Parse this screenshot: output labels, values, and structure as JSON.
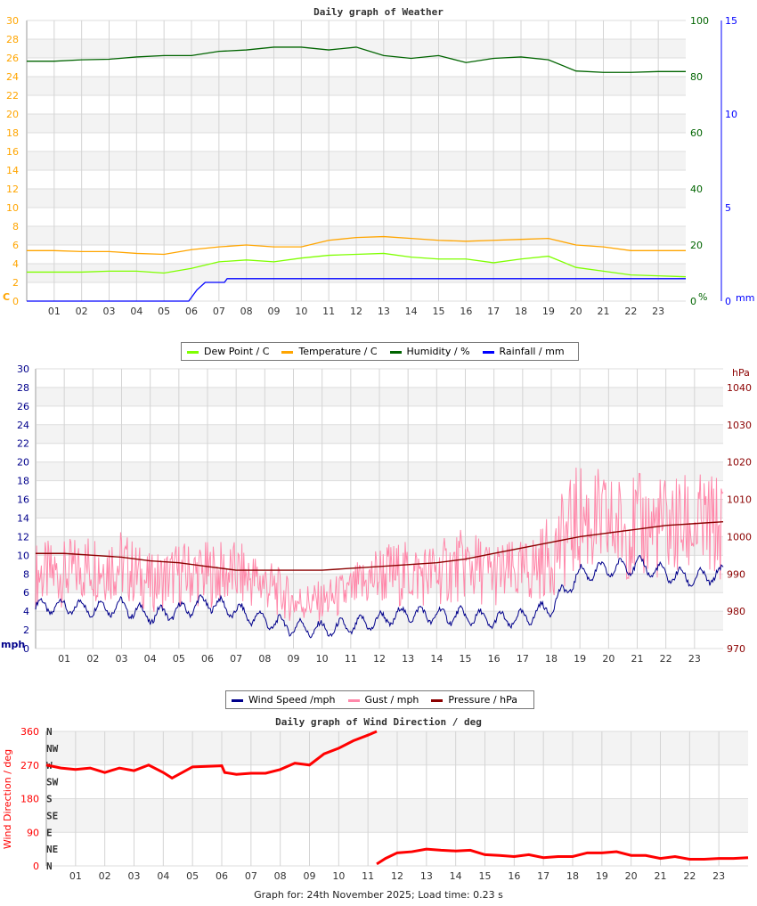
{
  "chart_data": [
    {
      "type": "line",
      "title": "Daily graph of Weather",
      "x_ticks": [
        "01",
        "02",
        "03",
        "04",
        "05",
        "06",
        "07",
        "08",
        "09",
        "10",
        "11",
        "12",
        "13",
        "14",
        "15",
        "16",
        "17",
        "18",
        "19",
        "20",
        "21",
        "22",
        "23"
      ],
      "y_left": {
        "label": "C",
        "ylim": [
          0,
          30
        ],
        "ticks": [
          0,
          2,
          4,
          6,
          8,
          10,
          12,
          14,
          16,
          18,
          20,
          22,
          24,
          26,
          28,
          30
        ],
        "color": "#ffa500"
      },
      "y_right1": {
        "label": "%",
        "ylim": [
          0,
          100
        ],
        "ticks": [
          0,
          20,
          40,
          60,
          80,
          100
        ],
        "color": "#006400"
      },
      "y_right2": {
        "label": "mm",
        "ylim": [
          0,
          15
        ],
        "ticks": [
          0,
          5,
          10,
          15
        ],
        "color": "#0000ff"
      },
      "grid": true,
      "legend": "bottom",
      "series": [
        {
          "name": "Dew Point / C",
          "color": "#7fff00",
          "axis": "left",
          "x": [
            0,
            1,
            2,
            3,
            4,
            5,
            6,
            7,
            8,
            9,
            10,
            11,
            12,
            13,
            14,
            15,
            16,
            17,
            18,
            19,
            20,
            21,
            22,
            23,
            24
          ],
          "values": [
            3.1,
            3.1,
            3.1,
            3.2,
            3.2,
            3.0,
            3.5,
            4.2,
            4.4,
            4.2,
            4.6,
            4.9,
            5.0,
            5.1,
            4.7,
            4.5,
            4.5,
            4.1,
            4.5,
            4.8,
            3.6,
            3.2,
            2.8,
            2.7,
            2.6
          ]
        },
        {
          "name": "Temperature / C",
          "color": "#ffa500",
          "axis": "left",
          "x": [
            0,
            1,
            2,
            3,
            4,
            5,
            6,
            7,
            8,
            9,
            10,
            11,
            12,
            13,
            14,
            15,
            16,
            17,
            18,
            19,
            20,
            21,
            22,
            23,
            24
          ],
          "values": [
            5.4,
            5.4,
            5.3,
            5.3,
            5.1,
            5.0,
            5.5,
            5.8,
            6.0,
            5.8,
            5.8,
            6.5,
            6.8,
            6.9,
            6.7,
            6.5,
            6.4,
            6.5,
            6.6,
            6.7,
            6.0,
            5.8,
            5.4,
            5.4,
            5.4
          ]
        },
        {
          "name": "Humidity / %",
          "color": "#006400",
          "axis": "right1",
          "x": [
            0,
            1,
            2,
            3,
            4,
            5,
            6,
            7,
            8,
            9,
            10,
            11,
            12,
            13,
            14,
            15,
            16,
            17,
            18,
            19,
            20,
            21,
            22,
            23,
            24
          ],
          "values": [
            85.5,
            85.5,
            86,
            86.2,
            87,
            87.5,
            87.5,
            89,
            89.5,
            90.5,
            90.5,
            89.5,
            90.5,
            87.5,
            86.5,
            87.5,
            85,
            86.5,
            87,
            86,
            82,
            81.5,
            81.5,
            81.8,
            81.8
          ]
        },
        {
          "name": "Rainfall / mm",
          "color": "#0000ff",
          "axis": "right2",
          "x": [
            0,
            5.9,
            6.2,
            6.5,
            7.2,
            7.3,
            24
          ],
          "values": [
            0,
            0,
            0.6,
            1.0,
            1.0,
            1.2,
            1.2
          ]
        }
      ]
    },
    {
      "type": "line",
      "title": "",
      "x_ticks": [
        "01",
        "02",
        "03",
        "04",
        "05",
        "06",
        "07",
        "08",
        "09",
        "10",
        "11",
        "12",
        "13",
        "14",
        "15",
        "16",
        "17",
        "18",
        "19",
        "20",
        "21",
        "22",
        "23"
      ],
      "y_left": {
        "label": "mph",
        "ylim": [
          0,
          30
        ],
        "ticks": [
          0,
          2,
          4,
          6,
          8,
          10,
          12,
          14,
          16,
          18,
          20,
          22,
          24,
          26,
          28,
          30
        ],
        "color": "#00008b"
      },
      "y_right": {
        "label": "hPa",
        "ylim": [
          970,
          1045
        ],
        "ticks": [
          970,
          980,
          990,
          1000,
          1010,
          1020,
          1030,
          1040
        ],
        "color": "#8b0000"
      },
      "grid": true,
      "legend": "bottom",
      "series": [
        {
          "name": "Wind Speed /mph",
          "color": "#00008b",
          "axis": "left",
          "x": [
            0,
            1,
            2,
            3,
            4,
            5,
            6,
            7,
            8,
            9,
            10,
            11,
            12,
            13,
            14,
            15,
            16,
            17,
            18,
            19,
            20,
            21,
            22,
            23,
            24
          ],
          "values": [
            4.5,
            4.5,
            4.3,
            4.5,
            3.5,
            4,
            5,
            4,
            3,
            2.3,
            2,
            2.4,
            3,
            3.8,
            3.5,
            3.5,
            3,
            3.2,
            4.5,
            8,
            8.5,
            9,
            8,
            7.5,
            8
          ]
        },
        {
          "name": "Gust / mph",
          "color": "#ff88aa",
          "axis": "left",
          "x": [
            0,
            1,
            2,
            3,
            4,
            5,
            6,
            7,
            8,
            9,
            10,
            11,
            12,
            13,
            14,
            15,
            16,
            17,
            18,
            19,
            20,
            21,
            22,
            23,
            24
          ],
          "values": [
            8,
            8,
            9,
            9,
            7,
            8,
            8,
            8,
            7,
            5,
            5,
            6,
            8,
            8,
            8,
            9,
            8,
            8,
            10,
            14,
            13,
            13,
            13,
            13,
            13
          ]
        },
        {
          "name": "Pressure / hPa",
          "color": "#8b0000",
          "axis": "right",
          "x": [
            0,
            1,
            2,
            3,
            4,
            5,
            6,
            7,
            8,
            9,
            10,
            11,
            12,
            13,
            14,
            15,
            16,
            17,
            18,
            19,
            20,
            21,
            22,
            23,
            24
          ],
          "values": [
            995.5,
            995.5,
            995,
            994.5,
            993.5,
            993,
            992,
            991,
            991,
            991,
            991,
            991.5,
            992,
            992.5,
            993,
            994,
            995.5,
            997,
            998.5,
            1000,
            1001,
            1002,
            1003,
            1003.5,
            1004
          ]
        }
      ]
    },
    {
      "type": "scatter",
      "title": "Daily graph of Wind Direction / deg",
      "x_ticks": [
        "01",
        "02",
        "03",
        "04",
        "05",
        "06",
        "07",
        "08",
        "09",
        "10",
        "11",
        "12",
        "13",
        "14",
        "15",
        "16",
        "17",
        "18",
        "19",
        "20",
        "21",
        "22",
        "23"
      ],
      "y_left": {
        "label": "Wind Direction / deg",
        "ylim": [
          0,
          360
        ],
        "ticks": [
          0,
          90,
          180,
          270,
          360
        ],
        "color": "#ff0000"
      },
      "compass": [
        "N",
        "NE",
        "E",
        "SE",
        "S",
        "SW",
        "W",
        "NW",
        "N"
      ],
      "grid": true,
      "series": [
        {
          "name": "",
          "color": "#ff0000",
          "x": [
            0,
            0.5,
            1,
            1.5,
            2,
            2.5,
            3,
            3.5,
            4,
            4.3,
            5,
            6,
            6.1,
            6.5,
            7,
            7.5,
            8,
            8.5,
            9,
            9.5,
            10,
            10.5,
            11,
            11.3
          ],
          "values": [
            270,
            262,
            258,
            262,
            250,
            262,
            255,
            270,
            250,
            235,
            265,
            268,
            250,
            245,
            248,
            248,
            258,
            275,
            270,
            300,
            315,
            335,
            350,
            360
          ]
        },
        {
          "name": "",
          "color": "#ff0000",
          "x": [
            11.3,
            11.6,
            12,
            12.5,
            13,
            13.5,
            14,
            14.5,
            15,
            15.5,
            16,
            16.5,
            17,
            17.5,
            18,
            18.5,
            19,
            19.5,
            20,
            20.5,
            21,
            21.5,
            22,
            22.5,
            23,
            23.5,
            24
          ],
          "values": [
            5,
            20,
            35,
            38,
            45,
            42,
            40,
            42,
            30,
            28,
            25,
            30,
            22,
            25,
            25,
            35,
            35,
            38,
            28,
            28,
            20,
            25,
            18,
            18,
            20,
            20,
            22
          ]
        }
      ]
    }
  ],
  "footer": "Graph for: 24th November 2025; Load time: 0.23 s"
}
